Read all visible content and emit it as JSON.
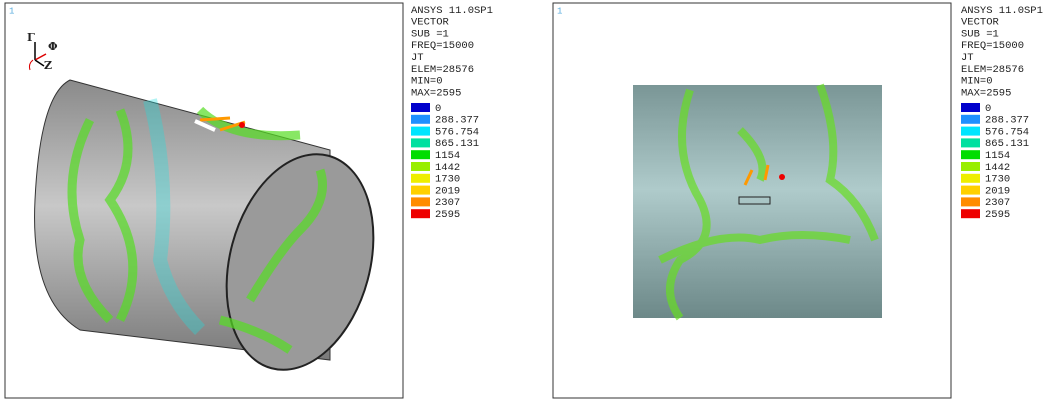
{
  "panels": [
    {
      "corner_label": "1",
      "info": [
        "ANSYS 11.0SP1",
        "VECTOR",
        "SUB =1",
        "FREQ=15000",
        "JT",
        "ELEM=28576",
        "MIN=0",
        "MAX=2595"
      ],
      "legend": [
        {
          "label": "0",
          "color": "#0000cc"
        },
        {
          "label": "288.377",
          "color": "#1e90ff"
        },
        {
          "label": "576.754",
          "color": "#00e5ff"
        },
        {
          "label": "865.131",
          "color": "#00e0a0"
        },
        {
          "label": "1154",
          "color": "#00dd00"
        },
        {
          "label": "1442",
          "color": "#99ee00"
        },
        {
          "label": "1730",
          "color": "#eeee00"
        },
        {
          "label": "2019",
          "color": "#ffd000"
        },
        {
          "label": "2307",
          "color": "#ff8c00"
        },
        {
          "label": "2595",
          "color": "#ee0000"
        }
      ],
      "axis_labels": [
        "Γ",
        "Φ",
        "Z"
      ]
    },
    {
      "corner_label": "1",
      "info": [
        "ANSYS 11.0SP1",
        "VECTOR",
        "SUB =1",
        "FREQ=15000",
        "JT",
        "ELEM=28576",
        "MIN=0",
        "MAX=2595"
      ],
      "legend": [
        {
          "label": "0",
          "color": "#0000cc"
        },
        {
          "label": "288.377",
          "color": "#1e90ff"
        },
        {
          "label": "576.754",
          "color": "#00e5ff"
        },
        {
          "label": "865.131",
          "color": "#00e0a0"
        },
        {
          "label": "1154",
          "color": "#00dd00"
        },
        {
          "label": "1442",
          "color": "#99ee00"
        },
        {
          "label": "1730",
          "color": "#eeee00"
        },
        {
          "label": "2019",
          "color": "#ffd000"
        },
        {
          "label": "2307",
          "color": "#ff8c00"
        },
        {
          "label": "2595",
          "color": "#ee0000"
        }
      ]
    }
  ]
}
